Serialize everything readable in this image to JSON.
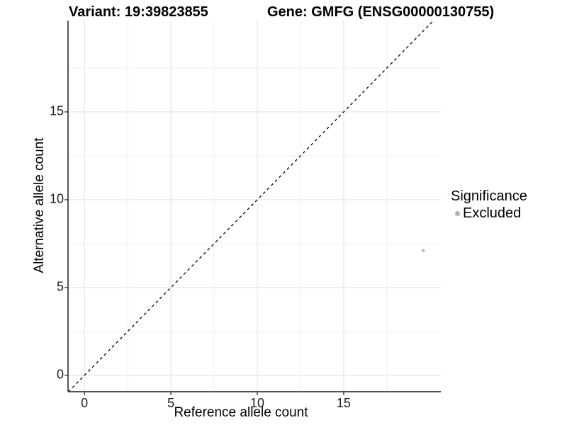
{
  "chart_data": {
    "type": "scatter",
    "title_variant": "Variant: 19:39823855",
    "title_gene": "Gene: GMFG (ENSG00000130755)",
    "xlabel": "Reference allele count",
    "ylabel": "Alternative allele count",
    "x_ticks": [
      0,
      5,
      10,
      15
    ],
    "y_ticks": [
      0,
      5,
      10,
      15
    ],
    "x_minor_ticks": [
      2.5,
      7.5,
      12.5,
      17.5
    ],
    "y_minor_ticks": [
      2.5,
      7.5,
      12.5,
      17.5
    ],
    "xlim": [
      -0.95,
      20.62
    ],
    "ylim": [
      -0.93,
      20.2
    ],
    "grid": true,
    "identity_line": {
      "style": "dashed",
      "color": "#000000"
    },
    "series": [
      {
        "name": "Excluded",
        "color": "#b9b9b9",
        "points": [
          {
            "x": 19.6,
            "y": 7.1
          }
        ]
      }
    ],
    "legend": {
      "position": "right",
      "title": "Significance",
      "items": [
        {
          "label": "Excluded",
          "color": "#b3b3b3"
        }
      ]
    }
  }
}
